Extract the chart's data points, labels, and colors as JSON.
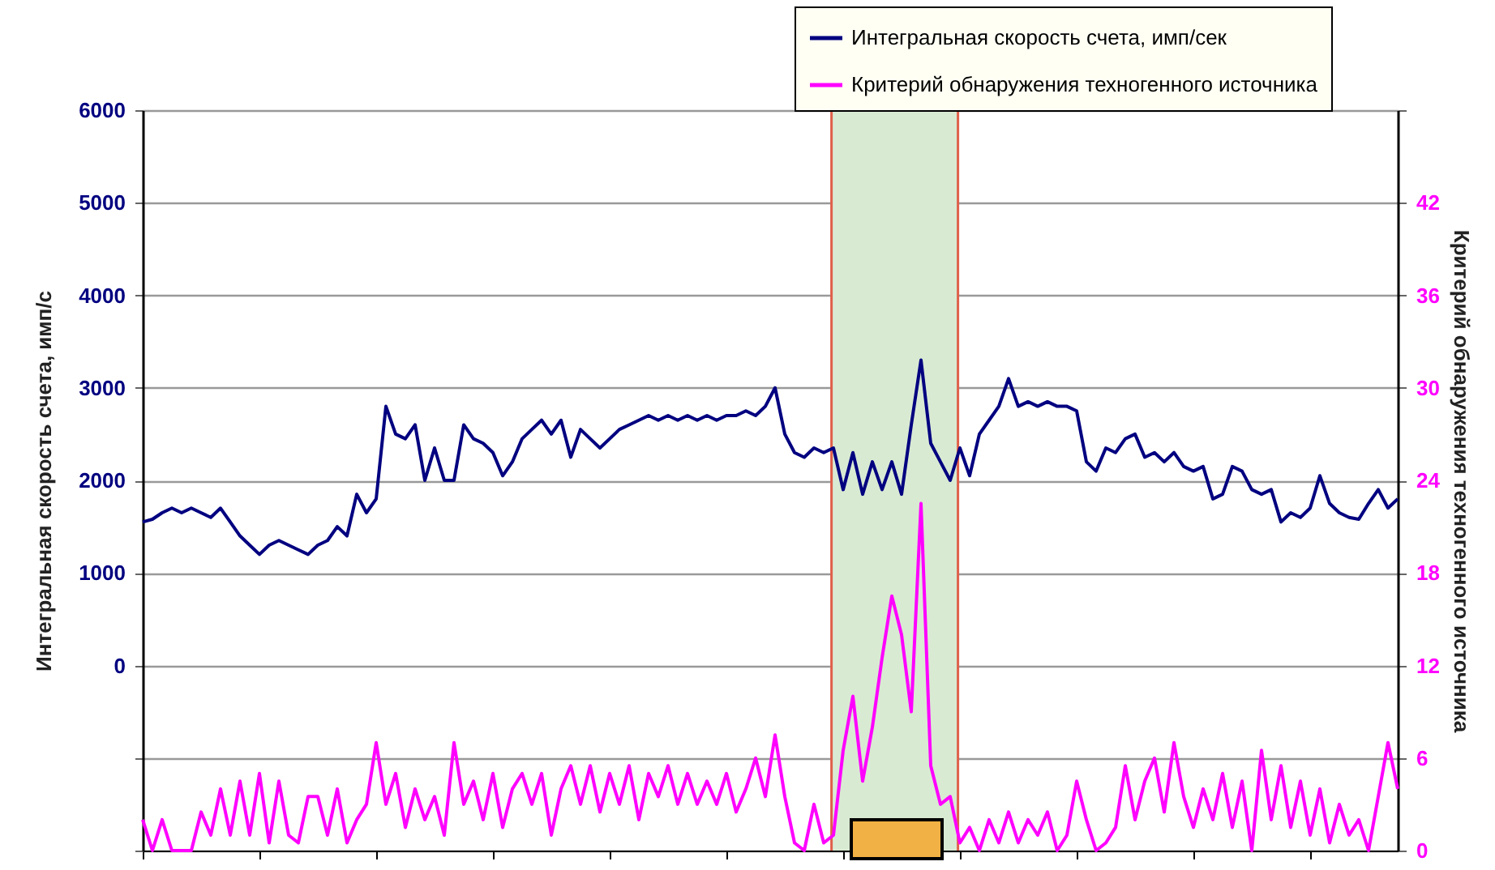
{
  "chart_data": {
    "type": "line",
    "ylabel": "Интегральная скорость счета, имп/с",
    "y2label": "Критерий обнаружения техногенного источника",
    "categories": [
      null,
      null,
      null,
      null,
      null,
      null,
      null,
      null,
      null,
      null,
      null,
      null,
      null,
      null,
      null,
      null,
      null,
      null,
      null,
      null,
      null,
      null,
      null,
      null,
      null,
      null,
      null,
      null,
      null,
      null,
      null,
      null,
      null,
      null,
      null,
      null,
      null,
      null,
      null,
      null,
      null,
      null,
      null,
      null,
      null,
      null,
      null,
      null,
      null,
      null,
      null,
      null,
      null,
      null,
      null,
      null,
      null,
      null,
      null,
      null,
      null,
      null,
      null,
      null,
      null,
      null,
      null,
      null,
      null,
      null,
      null,
      null,
      null,
      null,
      null,
      null,
      null,
      null,
      null,
      null,
      null,
      null,
      null,
      null,
      null,
      null,
      null,
      null,
      null,
      null,
      null,
      null,
      null,
      null,
      null,
      null,
      null,
      null,
      null,
      null,
      null,
      null,
      null,
      null,
      null,
      null,
      null,
      null,
      null,
      null,
      null,
      null,
      null,
      null,
      null,
      null,
      null,
      null,
      null,
      null,
      null,
      null,
      null,
      null,
      null,
      null,
      null,
      null,
      null,
      null
    ],
    "series": [
      {
        "name": "Интегральная скорость счета, имп/сек",
        "color": "#000080",
        "values": [
          1550,
          1580,
          1650,
          1700,
          1650,
          1700,
          1650,
          1600,
          1700,
          1550,
          1400,
          1300,
          1200,
          1300,
          1350,
          1300,
          1250,
          1200,
          1300,
          1350,
          1500,
          1400,
          1850,
          1650,
          1800,
          2800,
          2500,
          2450,
          2600,
          2000,
          2350,
          2000,
          2000,
          2600,
          2450,
          2400,
          2300,
          2050,
          2200,
          2450,
          2550,
          2650,
          2500,
          2650,
          2250,
          2550,
          2450,
          2350,
          2450,
          2550,
          2600,
          2650,
          2700,
          2650,
          2700,
          2650,
          2700,
          2650,
          2700,
          2650,
          2700,
          2700,
          2750,
          2700,
          2800,
          3000,
          2500,
          2300,
          2250,
          2350,
          2300,
          2350,
          1900,
          2300,
          1850,
          2200,
          1900,
          2200,
          1850,
          2600,
          3300,
          2400,
          2200,
          2000,
          2350,
          2050,
          2500,
          2650,
          2800,
          3100,
          2800,
          2850,
          2800,
          2850,
          2800,
          2800,
          2750,
          2200,
          2100,
          2350,
          2300,
          2450,
          2500,
          2250,
          2300,
          2200,
          2300,
          2150,
          2100,
          2150,
          1800,
          1850,
          2150,
          2100,
          1900,
          1850,
          1900,
          1550,
          1650,
          1600,
          1700,
          2050,
          1750,
          1650,
          1600,
          1580,
          1750,
          1900,
          1700,
          1800
        ]
      },
      {
        "name": "Критерий обнаружения техногенного источника",
        "color": "#ff00ff",
        "axis": "y2",
        "values": [
          2,
          0,
          2,
          0,
          0,
          0,
          2.5,
          1,
          4,
          1,
          4.5,
          1,
          5,
          0.5,
          4.5,
          1,
          0.5,
          3.5,
          3.5,
          1,
          4,
          0.5,
          2,
          3,
          7,
          3,
          5,
          1.5,
          4,
          2,
          3.5,
          1,
          7,
          3,
          4.5,
          2,
          5,
          1.5,
          4,
          5,
          3,
          5,
          1,
          4,
          5.5,
          3,
          5.5,
          2.5,
          5,
          3,
          5.5,
          2,
          5,
          3.5,
          5.5,
          3,
          5,
          3,
          4.5,
          3,
          5,
          2.5,
          4,
          6,
          3.5,
          7.5,
          3.5,
          0.5,
          0,
          3,
          0.5,
          1,
          6.5,
          10,
          4.5,
          8,
          12.5,
          16.5,
          14,
          9,
          22.5,
          5.5,
          3,
          3.5,
          0.5,
          1.5,
          0,
          2,
          0.5,
          2.5,
          0.5,
          2,
          1,
          2.5,
          0,
          1,
          4.5,
          2,
          0,
          0.5,
          1.5,
          5.5,
          2,
          4.5,
          6,
          2.5,
          7,
          3.5,
          1.5,
          4,
          2,
          5,
          1.5,
          4.5,
          0,
          6.5,
          2,
          5.5,
          1.5,
          4.5,
          1,
          4,
          0.5,
          3,
          1,
          2,
          0,
          3.5,
          7,
          4
        ]
      }
    ],
    "ylim": [
      -2000,
      6000
    ],
    "yticks": [
      {
        "value": -2000,
        "label": null
      },
      {
        "value": -1000,
        "label": null
      },
      0,
      1000,
      2000,
      3000,
      4000,
      5000,
      6000
    ],
    "y2lim": [
      0,
      48
    ],
    "y2ticks": [
      0,
      6,
      12,
      18,
      24,
      30,
      36,
      42,
      {
        "value": 48,
        "label": null
      }
    ],
    "grid": "y",
    "legend": "top right"
  }
}
